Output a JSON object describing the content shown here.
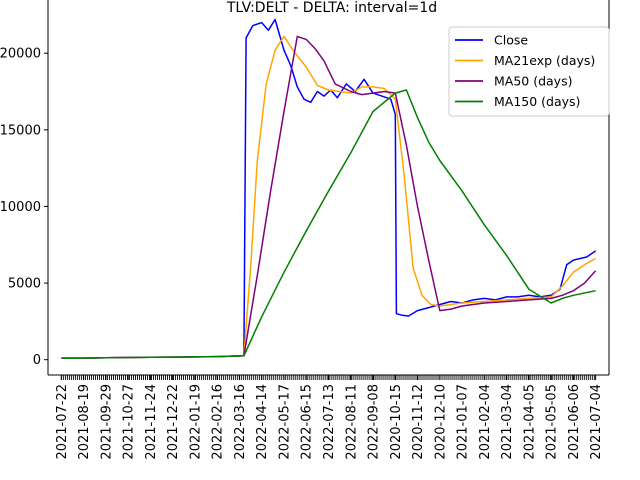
{
  "chart_data": {
    "type": "line",
    "title": "TLV:DELT - DELTA: interval=1d",
    "xlabel": "",
    "ylabel": "",
    "ylim": [
      -1000,
      23800
    ],
    "y_ticks": [
      0,
      5000,
      10000,
      15000,
      20000
    ],
    "y_tick_labels": [
      "0",
      "5000",
      "10000",
      "15000",
      "20000"
    ],
    "categories": [
      "2021-07-22",
      "2021-08-19",
      "2021-09-29",
      "2021-10-27",
      "2021-11-24",
      "2021-12-22",
      "2022-01-19",
      "2022-02-16",
      "2022-03-16",
      "2022-04-14",
      "2022-05-17",
      "2022-06-15",
      "2022-07-13",
      "2022-08-11",
      "2022-09-08",
      "2020-10-15",
      "2020-11-12",
      "2020-12-10",
      "2021-01-07",
      "2021-02-04",
      "2021-03-04",
      "2021-04-05",
      "2021-05-05",
      "2021-06-06",
      "2021-07-04"
    ],
    "grid": false,
    "legend_position": "top-right",
    "series": [
      {
        "name": "Close",
        "color": "#0000ff",
        "x": [
          0,
          1,
          2,
          3,
          4,
          5,
          6,
          7,
          8.2,
          8.3,
          8.6,
          9.0,
          9.3,
          9.6,
          10.0,
          10.3,
          10.6,
          10.9,
          11.2,
          11.5,
          11.8,
          12.1,
          12.4,
          12.8,
          13.2,
          13.6,
          14.0,
          14.4,
          14.8,
          15.0,
          15.05,
          15.3,
          15.6,
          16.0,
          16.5,
          17.0,
          17.5,
          18.0,
          18.5,
          19.0,
          19.5,
          20.0,
          20.5,
          21.0,
          21.5,
          22.0,
          22.4,
          22.7,
          23.0,
          23.3,
          23.6,
          24.0
        ],
        "values": [
          100,
          100,
          120,
          140,
          160,
          170,
          180,
          200,
          250,
          21000,
          21800,
          22000,
          21500,
          22200,
          20200,
          19200,
          17800,
          17000,
          16800,
          17500,
          17200,
          17600,
          17100,
          18000,
          17500,
          18300,
          17400,
          17200,
          17000,
          16000,
          3000,
          2900,
          2850,
          3200,
          3400,
          3600,
          3800,
          3700,
          3900,
          4000,
          3900,
          4100,
          4100,
          4200,
          4100,
          4200,
          4600,
          6200,
          6500,
          6600,
          6700,
          7100
        ]
      },
      {
        "name": "MA21exp (days)",
        "color": "#ffa500",
        "x": [
          0,
          1,
          2,
          3,
          4,
          5,
          6,
          7,
          8.2,
          8.5,
          8.8,
          9.2,
          9.6,
          10.0,
          10.5,
          11.0,
          11.5,
          12.0,
          12.5,
          13.0,
          13.5,
          14.0,
          14.5,
          15.0,
          15.4,
          15.8,
          16.2,
          16.6,
          17.0,
          17.5,
          18.0,
          19.0,
          20.0,
          21.0,
          22.0,
          22.5,
          23.0,
          23.5,
          24.0
        ],
        "values": [
          100,
          100,
          120,
          140,
          160,
          170,
          180,
          200,
          250,
          6000,
          13000,
          18000,
          20200,
          21100,
          20000,
          19100,
          17900,
          17600,
          17500,
          17400,
          17800,
          17800,
          17700,
          17000,
          12000,
          6000,
          4200,
          3600,
          3500,
          3600,
          3700,
          3800,
          3900,
          4000,
          4100,
          4800,
          5700,
          6200,
          6600
        ]
      },
      {
        "name": "MA50 (days)",
        "color": "#800080",
        "x": [
          0,
          1,
          2,
          3,
          4,
          5,
          6,
          7,
          8.2,
          8.8,
          9.4,
          10.0,
          10.6,
          11.0,
          11.4,
          11.8,
          12.3,
          13.0,
          13.5,
          14.0,
          14.5,
          15.0,
          15.5,
          16.0,
          16.5,
          17.0,
          17.5,
          18.0,
          19.0,
          20.0,
          21.0,
          22.0,
          22.5,
          23.0,
          23.5,
          24.0
        ],
        "values": [
          100,
          100,
          120,
          140,
          160,
          170,
          180,
          200,
          250,
          5500,
          11000,
          16200,
          21100,
          20900,
          20300,
          19500,
          18000,
          17500,
          17300,
          17400,
          17500,
          17400,
          14000,
          10000,
          6500,
          3200,
          3300,
          3500,
          3700,
          3800,
          3900,
          4000,
          4200,
          4500,
          5000,
          5800
        ]
      },
      {
        "name": "MA150 (days)",
        "color": "#008000",
        "x": [
          0,
          1,
          2,
          3,
          4,
          5,
          6,
          7,
          8.2,
          9.0,
          10.0,
          11.0,
          12.0,
          13.0,
          14.0,
          15.0,
          15.5,
          16.0,
          16.5,
          17.0,
          18.0,
          19.0,
          20.0,
          21.0,
          22.0,
          22.5,
          23.0,
          24.0
        ],
        "values": [
          100,
          100,
          120,
          140,
          160,
          170,
          180,
          200,
          250,
          2800,
          5700,
          8400,
          11000,
          13500,
          16200,
          17400,
          17600,
          15800,
          14200,
          13000,
          11000,
          8800,
          6800,
          4600,
          3700,
          4000,
          4200,
          4500
        ]
      }
    ]
  }
}
